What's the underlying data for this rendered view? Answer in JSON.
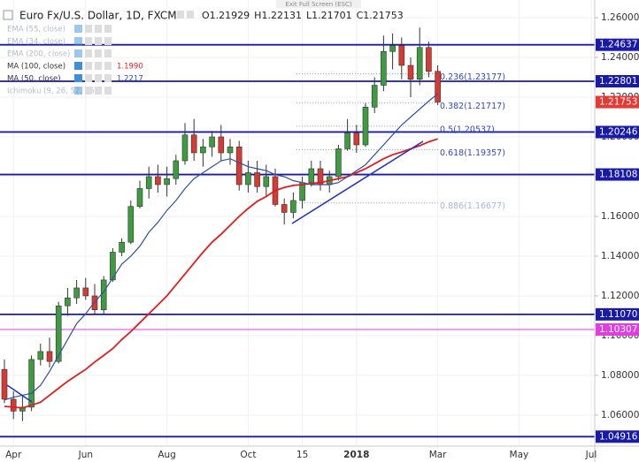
{
  "chart_data": {
    "type": "candlestick",
    "title": "Euro Fx/U.S. Dollar, 1D, FXCM",
    "ohlc_keys": [
      "O",
      "H",
      "L",
      "C"
    ],
    "ohlc_values": [
      1.21929,
      1.22131,
      1.21701,
      1.21753
    ],
    "fullscreen_hint": "Exit Full Screen (ESC)",
    "hidden_indicators_top": [
      "EMA (55, close)",
      "EMA (34, close)",
      "EMA (200, close)"
    ],
    "hidden_indicators_bottom": [
      "Ichimoku (9, 26, 52, 26)"
    ],
    "categories": [
      null,
      "Apr",
      null,
      null,
      null,
      null,
      null,
      null,
      null,
      "Jun",
      null,
      null,
      null,
      null,
      null,
      null,
      null,
      null,
      "Aug",
      null,
      null,
      null,
      null,
      null,
      null,
      null,
      null,
      "Oct",
      null,
      null,
      null,
      null,
      null,
      "15",
      null,
      null,
      null,
      null,
      null,
      "2018",
      null,
      null,
      null,
      null,
      null,
      null,
      null,
      null,
      "Mar",
      null,
      null,
      null,
      null,
      null,
      null,
      null,
      null,
      "May",
      null,
      null,
      null,
      null,
      null,
      null,
      null,
      "Jul"
    ],
    "candles": [
      [
        1.083,
        1.088,
        1.066,
        1.068
      ],
      [
        1.068,
        1.072,
        1.058,
        1.062
      ],
      [
        1.062,
        1.07,
        1.057,
        1.064
      ],
      [
        1.064,
        1.09,
        1.062,
        1.088
      ],
      [
        1.088,
        1.096,
        1.085,
        1.092
      ],
      [
        1.092,
        1.099,
        1.084,
        1.087
      ],
      [
        1.087,
        1.117,
        1.086,
        1.115
      ],
      [
        1.115,
        1.124,
        1.11,
        1.119
      ],
      [
        1.119,
        1.128,
        1.116,
        1.124
      ],
      [
        1.124,
        1.129,
        1.118,
        1.12
      ],
      [
        1.12,
        1.126,
        1.111,
        1.113
      ],
      [
        1.113,
        1.13,
        1.111,
        1.128
      ],
      [
        1.128,
        1.144,
        1.127,
        1.142
      ],
      [
        1.142,
        1.149,
        1.14,
        1.147
      ],
      [
        1.147,
        1.168,
        1.146,
        1.165
      ],
      [
        1.165,
        1.178,
        1.164,
        1.174
      ],
      [
        1.174,
        1.185,
        1.169,
        1.18
      ],
      [
        1.18,
        1.186,
        1.172,
        1.176
      ],
      [
        1.176,
        1.185,
        1.17,
        1.179
      ],
      [
        1.179,
        1.191,
        1.176,
        1.188
      ],
      [
        1.188,
        1.207,
        1.186,
        1.201
      ],
      [
        1.201,
        1.209,
        1.188,
        1.192
      ],
      [
        1.192,
        1.199,
        1.185,
        1.195
      ],
      [
        1.195,
        1.203,
        1.19,
        1.2
      ],
      [
        1.2,
        1.206,
        1.188,
        1.192
      ],
      [
        1.192,
        1.199,
        1.186,
        1.195
      ],
      [
        1.195,
        1.198,
        1.173,
        1.176
      ],
      [
        1.176,
        1.188,
        1.172,
        1.182
      ],
      [
        1.182,
        1.188,
        1.172,
        1.175
      ],
      [
        1.175,
        1.186,
        1.17,
        1.18
      ],
      [
        1.18,
        1.184,
        1.165,
        1.166
      ],
      [
        1.166,
        1.169,
        1.156,
        1.162
      ],
      [
        1.162,
        1.172,
        1.159,
        1.168
      ],
      [
        1.168,
        1.18,
        1.164,
        1.177
      ],
      [
        1.177,
        1.188,
        1.175,
        1.184
      ],
      [
        1.184,
        1.188,
        1.173,
        1.176
      ],
      [
        1.176,
        1.183,
        1.172,
        1.18
      ],
      [
        1.18,
        1.196,
        1.178,
        1.194
      ],
      [
        1.194,
        1.209,
        1.193,
        1.202
      ],
      [
        1.202,
        1.206,
        1.192,
        1.196
      ],
      [
        1.196,
        1.217,
        1.195,
        1.215
      ],
      [
        1.215,
        1.23,
        1.212,
        1.226
      ],
      [
        1.226,
        1.251,
        1.223,
        1.243
      ],
      [
        1.243,
        1.252,
        1.234,
        1.246
      ],
      [
        1.246,
        1.25,
        1.229,
        1.236
      ],
      [
        1.236,
        1.24,
        1.22,
        1.229
      ],
      [
        1.229,
        1.255,
        1.226,
        1.245
      ],
      [
        1.245,
        1.248,
        1.23,
        1.233
      ],
      [
        1.233,
        1.236,
        1.216,
        1.21753
      ],
      null,
      null,
      null,
      null,
      null,
      null,
      null,
      null,
      null,
      null,
      null,
      null,
      null,
      null,
      null,
      null,
      null
    ],
    "up_color": "#3f9b3f",
    "down_color": "#d63a32",
    "series": [
      {
        "name": "MA (100, close)",
        "legend_value": "1.1990",
        "color": "#e51c1c",
        "values": [
          1.0644,
          1.064,
          1.0636,
          1.065,
          1.0665,
          1.07,
          1.0735,
          1.077,
          1.08,
          1.083,
          1.0867,
          1.09,
          1.0935,
          1.098,
          1.102,
          1.1065,
          1.111,
          1.1155,
          1.12,
          1.1255,
          1.131,
          1.1365,
          1.142,
          1.147,
          1.151,
          1.1555,
          1.16,
          1.164,
          1.1676,
          1.17,
          1.173,
          1.1745,
          1.1756,
          1.176,
          1.1765,
          1.177,
          1.178,
          1.179,
          1.18,
          1.182,
          1.184,
          1.1865,
          1.189,
          1.191,
          1.1924,
          1.194,
          1.1956,
          1.1975,
          1.199,
          null,
          null,
          null,
          null,
          null,
          null,
          null,
          null,
          null,
          null,
          null,
          null,
          null,
          null,
          null,
          null,
          null
        ]
      },
      {
        "name": "MA (50, close)",
        "legend_value": "1.2217",
        "color": "#2f4fa8",
        "values": [
          1.0676,
          1.069,
          1.07,
          1.071,
          1.075,
          1.082,
          1.09,
          1.098,
          1.106,
          1.111,
          1.117,
          1.122,
          1.129,
          1.136,
          1.14,
          1.145,
          1.152,
          1.157,
          1.163,
          1.168,
          1.174,
          1.179,
          1.182,
          1.185,
          1.188,
          1.189,
          1.187,
          1.185,
          1.184,
          1.183,
          1.181,
          1.18,
          1.178,
          1.177,
          1.176,
          1.176,
          1.176,
          1.177,
          1.18,
          1.183,
          1.186,
          1.191,
          1.196,
          1.201,
          1.206,
          1.21,
          1.214,
          1.218,
          1.2217,
          null,
          null,
          null,
          null,
          null,
          null,
          null,
          null,
          null,
          null,
          null,
          null,
          null,
          null,
          null,
          null,
          null
        ]
      }
    ],
    "ylim": [
      1.0444,
      1.2689
    ],
    "yticks": [
      {
        "value": 1.06,
        "label": "1.06000"
      },
      {
        "value": 1.08,
        "label": "1.08000"
      },
      {
        "value": 1.1,
        "label": "1.10000"
      },
      {
        "value": 1.12,
        "label": "1.12000"
      },
      {
        "value": 1.14,
        "label": "1.14000"
      },
      {
        "value": 1.16,
        "label": "1.16000"
      },
      {
        "value": 1.18,
        "label": "1.18000"
      },
      {
        "value": 1.2,
        "label": "1.20000"
      },
      {
        "value": 1.22,
        "label": "1.22000"
      },
      {
        "value": 1.24,
        "label": "1.24000"
      },
      {
        "value": 1.26,
        "label": "1.26000"
      }
    ],
    "grid": true,
    "levels": [
      1.24637,
      1.22801,
      1.20246,
      1.18108,
      {
        "value": 1.1107,
        "label": "1.11070"
      },
      1.04916
    ],
    "level_color": "#1a1aa8",
    "support_level": 1.10307,
    "support_color": "#e03ee0",
    "last_price": 1.21753,
    "last_price_color": "#e53935",
    "fib_levels": [
      {
        "value": 1.23177,
        "label": "0.236(1.23177)"
      },
      {
        "value": 1.21717,
        "label": "0.382(1.21717)"
      },
      {
        "value": 1.20537,
        "label": "0.5(1.20537)"
      },
      {
        "value": 1.19357,
        "label": "0.618(1.19357)"
      },
      {
        "value": 1.16677,
        "label": "0.886(1.16677)"
      }
    ]
  }
}
